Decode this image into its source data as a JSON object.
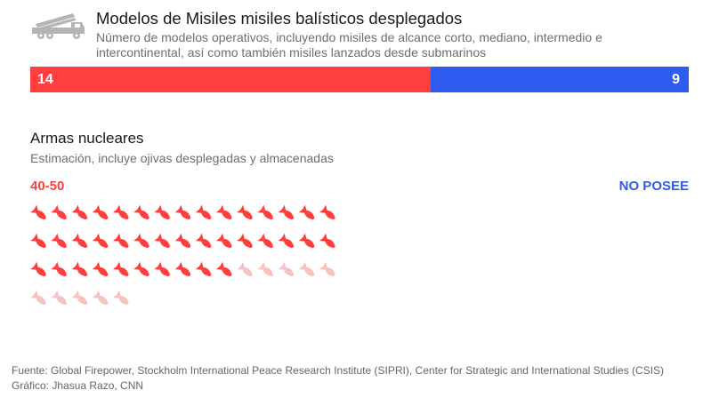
{
  "colors": {
    "red": "#ff3f3f",
    "blue": "#2e5bf0",
    "red_light": "#f7c2c2",
    "icon_gray": "#b4b4b4"
  },
  "icons": {
    "header": "missile-launcher-truck-icon",
    "unit": "bomb-icon"
  },
  "missiles": {
    "title": "Modelos de Misiles misiles balísticos desplegados",
    "subtitle": "Número de modelos operativos, incluyendo misiles de alcance corto, mediano, intermedio e intercontinental, así como también misiles lanzados desde submarinos"
  },
  "nuclear": {
    "title": "Armas nucleares",
    "subtitle": "Estimación, incluye ojivas desplegadas y almacenadas",
    "left_label": "40-50",
    "right_label": "NO POSEE"
  },
  "footer": {
    "source": "Fuente: Global Firepower, Stockholm International Peace Research Institute (SIPRI), Center for Strategic and International Studies (CSIS)",
    "credit": "Gráfico: Jhasua Razo, CNN"
  },
  "chart_data": [
    {
      "type": "bar",
      "orientation": "horizontal-stacked",
      "title": "Modelos de Misiles misiles balísticos desplegados",
      "series": [
        {
          "name": "",
          "values": [
            14
          ],
          "color": "#ff3f3f"
        },
        {
          "name": "",
          "values": [
            9
          ],
          "color": "#2e5bf0"
        }
      ]
    },
    {
      "type": "pictogram",
      "title": "Armas nucleares",
      "range_label": "40-50",
      "solid_units": 40,
      "light_units": 10,
      "total_units": 50,
      "units_per_row": 15,
      "other_label": "NO POSEE"
    }
  ]
}
